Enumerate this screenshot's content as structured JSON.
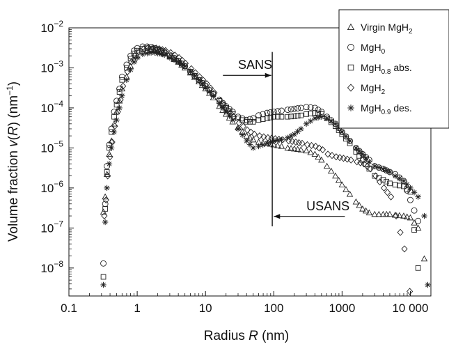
{
  "chart_data": {
    "type": "scatter",
    "x_scale": "log",
    "y_scale": "log",
    "xlim": [
      0.1,
      20000
    ],
    "ylim": [
      2e-09,
      0.01
    ],
    "x_ticks": [
      {
        "value": 0.1,
        "label": "0.1"
      },
      {
        "value": 1,
        "label": "1"
      },
      {
        "value": 10,
        "label": "10"
      },
      {
        "value": 100,
        "label": "100"
      },
      {
        "value": 1000,
        "label": "1000"
      },
      {
        "value": 10000,
        "label": "10 000"
      }
    ],
    "y_ticks": [
      {
        "value": 0.01,
        "mant": "10",
        "exp": "−2"
      },
      {
        "value": 0.001,
        "mant": "10",
        "exp": "−3"
      },
      {
        "value": 0.0001,
        "mant": "10",
        "exp": "−4"
      },
      {
        "value": 1e-05,
        "mant": "10",
        "exp": "−5"
      },
      {
        "value": 1e-06,
        "mant": "10",
        "exp": "−6"
      },
      {
        "value": 1e-07,
        "mant": "10",
        "exp": "−7"
      },
      {
        "value": 1e-08,
        "mant": "10",
        "exp": "−8"
      }
    ],
    "xlabel": {
      "pre": "Radius ",
      "var": "R",
      "post": " (nm)"
    },
    "ylabel": {
      "pre": "Volume fraction ",
      "var": "v",
      "mid": "(",
      "var2": "R",
      "post": ") (nm",
      "sup": "−1",
      "end": ")"
    },
    "annotations": [
      {
        "text": "SANS",
        "x": 30,
        "y": 0.0012,
        "arrow_from_x": 18,
        "arrow_to_x": 92,
        "arrow_y": 0.00065
      },
      {
        "text": "USANS",
        "x": 300,
        "y": 3.5e-07,
        "arrow_from_x": 1100,
        "arrow_to_x": 100,
        "arrow_y": 1.95e-07
      }
    ],
    "divider_x": 95,
    "divider_ylim": [
      1.1e-07,
      0.0025
    ],
    "legend": {
      "position": "top-right",
      "entries": [
        {
          "marker": "triangle",
          "base": "Virgin MgH",
          "sub": "2",
          "suffix": ""
        },
        {
          "marker": "circle",
          "base": "MgH",
          "sub": "0",
          "suffix": ""
        },
        {
          "marker": "square",
          "base": "MgH",
          "sub": "0.8",
          "suffix": " abs."
        },
        {
          "marker": "diamond",
          "base": "MgH",
          "sub": "2",
          "suffix": ""
        },
        {
          "marker": "asterisk",
          "base": "MgH",
          "sub": "0.9",
          "suffix": " des."
        }
      ]
    },
    "series": [
      {
        "marker": "triangle",
        "x": [
          0.32,
          0.34,
          0.36,
          0.39,
          0.42,
          0.46,
          0.5,
          0.55,
          0.6,
          0.7,
          0.8,
          0.9,
          1.0,
          1.2,
          1.4,
          1.6,
          1.8,
          2.0,
          2.5,
          3.0,
          4.0,
          5.0,
          6.0,
          8.0,
          10,
          13,
          16,
          20,
          25,
          30,
          40,
          50,
          60,
          80,
          100,
          130,
          160,
          200,
          250,
          300,
          400,
          500,
          600,
          800,
          1000,
          1300,
          1600,
          2000,
          2500,
          3000,
          4000,
          5000,
          6000,
          8000,
          10000,
          13000,
          16000
        ],
        "y": [
          2.5e-07,
          6e-07,
          2.2e-06,
          7e-06,
          1.5e-05,
          4e-05,
          8e-05,
          0.00015,
          0.0003,
          0.0006,
          0.0011,
          0.0016,
          0.002,
          0.0025,
          0.0027,
          0.0028,
          0.0027,
          0.0026,
          0.0023,
          0.0019,
          0.0014,
          0.001,
          0.00075,
          0.00045,
          0.0003,
          0.00018,
          0.00011,
          7e-05,
          4.5e-05,
          3.2e-05,
          2e-05,
          1.6e-05,
          1.4e-05,
          1.3e-05,
          1.2e-05,
          1.1e-05,
          1e-05,
          9.5e-06,
          9e-06,
          8.5e-06,
          7e-06,
          5e-06,
          3.5e-06,
          2e-06,
          1.2e-06,
          7e-07,
          4.5e-07,
          3e-07,
          2.4e-07,
          2.2e-07,
          2.2e-07,
          2.2e-07,
          2.1e-07,
          2e-07,
          1.8e-07,
          1e-07,
          1.7e-08
        ]
      },
      {
        "marker": "circle",
        "x": [
          0.32,
          0.34,
          0.36,
          0.39,
          0.42,
          0.46,
          0.5,
          0.55,
          0.6,
          0.7,
          0.8,
          0.9,
          1.0,
          1.2,
          1.4,
          1.6,
          1.8,
          2.0,
          2.5,
          3.0,
          4.0,
          5.0,
          6.0,
          8.0,
          10,
          13,
          16,
          20,
          25,
          30,
          40,
          50,
          60,
          80,
          100,
          130,
          160,
          200,
          250,
          300,
          400,
          500,
          600,
          800,
          1000,
          1300,
          1600,
          2000,
          2500,
          3000,
          4000,
          5000,
          6000,
          8000,
          10000,
          13000
        ],
        "y": [
          1.3e-08,
          4e-07,
          3.5e-06,
          1.2e-05,
          3e-05,
          8e-05,
          0.00015,
          0.0003,
          0.0006,
          0.0012,
          0.002,
          0.0027,
          0.0031,
          0.0034,
          0.0034,
          0.0033,
          0.0031,
          0.0029,
          0.0025,
          0.0021,
          0.0015,
          0.0011,
          0.0008,
          0.0005,
          0.00035,
          0.00022,
          0.00016,
          0.00011,
          8e-05,
          6e-05,
          5e-05,
          5.5e-05,
          6.5e-05,
          7.5e-05,
          8e-05,
          8.5e-05,
          9e-05,
          9.5e-05,
          0.0001,
          0.000105,
          0.0001,
          8e-05,
          6e-05,
          4e-05,
          2.5e-05,
          1.5e-05,
          1e-05,
          7e-06,
          5e-06,
          3.5e-06,
          3e-06,
          2.5e-06,
          2.2e-06,
          1.5e-06,
          5e-07,
          1.5e-07
        ]
      },
      {
        "marker": "square",
        "x": [
          0.32,
          0.34,
          0.36,
          0.39,
          0.42,
          0.46,
          0.5,
          0.55,
          0.6,
          0.7,
          0.8,
          0.9,
          1.0,
          1.2,
          1.4,
          1.6,
          1.8,
          2.0,
          2.5,
          3.0,
          4.0,
          5.0,
          6.0,
          8.0,
          10,
          13,
          16,
          20,
          25,
          30,
          40,
          50,
          60,
          80,
          100,
          130,
          160,
          200,
          250,
          300,
          400,
          500,
          600,
          800,
          1000,
          1300,
          1600,
          2000,
          2500,
          3000,
          4000,
          5000,
          6000,
          8000,
          10000,
          13000
        ],
        "y": [
          6e-09,
          3e-07,
          2.5e-06,
          1e-05,
          2.5e-05,
          6e-05,
          0.00012,
          0.00025,
          0.0005,
          0.001,
          0.0017,
          0.0023,
          0.0027,
          0.003,
          0.0031,
          0.003,
          0.0029,
          0.0028,
          0.0024,
          0.002,
          0.0015,
          0.0011,
          0.0008,
          0.0005,
          0.00035,
          0.00022,
          0.00015,
          0.0001,
          7e-05,
          5.5e-05,
          4.5e-05,
          4.5e-05,
          5e-05,
          5.5e-05,
          6e-05,
          6e-05,
          6e-05,
          6.2e-05,
          6.5e-05,
          7e-05,
          7.5e-05,
          7e-05,
          5.5e-05,
          3.5e-05,
          2.2e-05,
          1.3e-05,
          8e-06,
          5e-06,
          3e-06,
          2e-06,
          1.6e-06,
          1.3e-06,
          1.2e-06,
          1.1e-06,
          8e-07,
          1e-08
        ]
      },
      {
        "marker": "diamond",
        "x": [
          0.33,
          0.35,
          0.37,
          0.4,
          0.43,
          0.47,
          0.52,
          0.57,
          0.62,
          0.72,
          0.82,
          0.92,
          1.05,
          1.25,
          1.45,
          1.7,
          1.9,
          2.1,
          2.6,
          3.1,
          4.1,
          5.1,
          6.2,
          8.2,
          10.5,
          13.5,
          16.5,
          21,
          26,
          31,
          41,
          52,
          62,
          82,
          105,
          135,
          165,
          210,
          260,
          310,
          410,
          520,
          620,
          820,
          1050,
          1350,
          1650,
          2100,
          2600,
          3100,
          4100,
          5200,
          6200,
          8200,
          9800
        ],
        "y": [
          2e-07,
          5e-07,
          2e-06,
          6e-06,
          1.4e-05,
          3.5e-05,
          8e-05,
          0.00016,
          0.00035,
          0.0008,
          0.0014,
          0.002,
          0.0025,
          0.003,
          0.0032,
          0.0032,
          0.0031,
          0.003,
          0.0027,
          0.0024,
          0.0018,
          0.0013,
          0.00095,
          0.0006,
          0.0004,
          0.00024,
          0.00015,
          9e-05,
          6e-05,
          4.2e-05,
          2.8e-05,
          2.2e-05,
          2e-05,
          1.8e-05,
          1.7e-05,
          1.6e-05,
          1.5e-05,
          1.4e-05,
          1.3e-05,
          1.2e-05,
          1.1e-05,
          9e-06,
          7e-06,
          6e-06,
          5.5e-06,
          5e-06,
          4.5e-06,
          4e-06,
          3e-06,
          2e-06,
          1e-06,
          6e-07,
          2e-07,
          3e-08,
          2.6e-09
        ]
      },
      {
        "marker": "asterisk",
        "x": [
          0.32,
          0.34,
          0.36,
          0.39,
          0.42,
          0.46,
          0.5,
          0.55,
          0.6,
          0.7,
          0.8,
          0.9,
          1.0,
          1.2,
          1.4,
          1.6,
          1.8,
          2.0,
          2.5,
          3.0,
          4.0,
          5.0,
          6.0,
          8.0,
          10,
          13,
          16,
          20,
          25,
          30,
          40,
          50,
          60,
          80,
          100,
          130,
          160,
          200,
          250,
          300,
          400,
          500,
          600,
          800,
          1000,
          1300,
          1600,
          2000,
          2500,
          3000,
          4000,
          5000,
          6000,
          8000,
          10000,
          13000,
          16000,
          18000
        ],
        "y": [
          3.8e-09,
          1.4e-07,
          1e-06,
          4e-06,
          1e-05,
          2.5e-05,
          5e-05,
          0.0001,
          0.0002,
          0.0005,
          0.0009,
          0.0014,
          0.0018,
          0.0022,
          0.0023,
          0.0024,
          0.0024,
          0.0023,
          0.0021,
          0.0018,
          0.0014,
          0.0011,
          0.0008,
          0.0005,
          0.00032,
          0.0002,
          0.00013,
          8e-05,
          5e-05,
          3e-05,
          1.5e-05,
          1e-05,
          1.1e-05,
          1.3e-05,
          1.5e-05,
          1.6e-05,
          1.8e-05,
          2.2e-05,
          3e-05,
          4e-05,
          5.5e-05,
          6e-05,
          5.5e-05,
          4e-05,
          2.5e-05,
          1.5e-05,
          1e-05,
          7e-06,
          4.5e-06,
          3.5e-06,
          3e-06,
          2.5e-06,
          2e-06,
          1.5e-06,
          1e-06,
          6e-07,
          2e-07,
          3.8e-09
        ]
      }
    ]
  }
}
